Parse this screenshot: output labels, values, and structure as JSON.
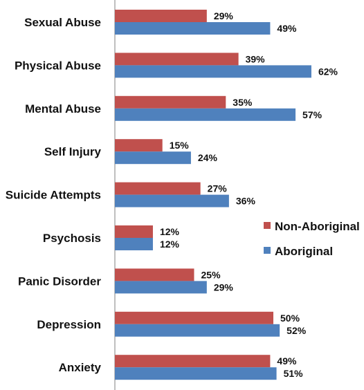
{
  "chart_data": {
    "type": "bar",
    "orientation": "horizontal",
    "categories": [
      "Sexual Abuse",
      "Physical Abuse",
      "Mental Abuse",
      "Self Injury",
      "Suicide Attempts",
      "Psychosis",
      "Panic Disorder",
      "Depression",
      "Anxiety"
    ],
    "series": [
      {
        "name": "Non-Aboriginal",
        "color": "#c0504d",
        "values": [
          29,
          39,
          35,
          15,
          27,
          12,
          25,
          50,
          49
        ],
        "labels": [
          "29%",
          "39%",
          "35%",
          "15%",
          "27%",
          "12%",
          "25%",
          "50%",
          "49%"
        ]
      },
      {
        "name": "Aboriginal",
        "color": "#4f81bd",
        "values": [
          49,
          62,
          57,
          24,
          36,
          12,
          29,
          52,
          51
        ],
        "labels": [
          "49%",
          "62%",
          "57%",
          "24%",
          "36%",
          "12%",
          "29%",
          "52%",
          "51%"
        ]
      }
    ],
    "title": "",
    "xlabel": "",
    "ylabel": "",
    "xlim": [
      0,
      80
    ],
    "grid": false,
    "legend_position": "right"
  }
}
